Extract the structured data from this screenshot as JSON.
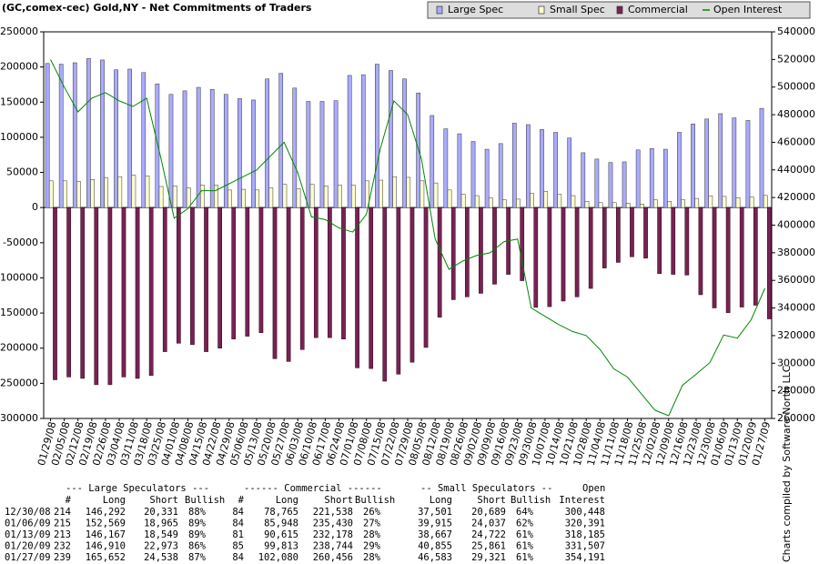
{
  "chart_data": {
    "type": "bar",
    "title": "(GC,comex-cec) Gold,NY - Net Commitments of Traders",
    "categories": [
      "01/29/08",
      "02/05/08",
      "02/12/08",
      "02/19/08",
      "02/26/08",
      "03/04/08",
      "03/11/08",
      "03/18/08",
      "03/25/08",
      "04/01/08",
      "04/08/08",
      "04/15/08",
      "04/22/08",
      "04/29/08",
      "05/06/08",
      "05/13/08",
      "05/20/08",
      "05/27/08",
      "06/03/08",
      "06/10/08",
      "06/17/08",
      "06/24/08",
      "07/01/08",
      "07/08/08",
      "07/15/08",
      "07/22/08",
      "07/29/08",
      "08/05/08",
      "08/12/08",
      "08/19/08",
      "08/26/08",
      "09/02/08",
      "09/09/08",
      "09/16/08",
      "09/23/08",
      "09/30/08",
      "10/07/08",
      "10/14/08",
      "10/21/08",
      "10/28/08",
      "11/04/08",
      "11/11/08",
      "11/18/08",
      "11/25/08",
      "12/02/08",
      "12/09/08",
      "12/16/08",
      "12/23/08",
      "12/30/08",
      "01/06/09",
      "01/13/09",
      "01/20/09",
      "01/27/09"
    ],
    "series": [
      {
        "name": "Large Spec",
        "type": "bar",
        "color": "#aaaaff",
        "values": [
          205000,
          204000,
          206000,
          212000,
          210000,
          196000,
          197000,
          192000,
          176000,
          161000,
          166000,
          171000,
          168000,
          161000,
          155000,
          153000,
          183000,
          191000,
          170000,
          151000,
          151000,
          152000,
          188000,
          189000,
          204000,
          195000,
          183000,
          163000,
          131000,
          112000,
          105000,
          94000,
          83000,
          91000,
          120000,
          118000,
          111000,
          107000,
          99000,
          78000,
          69000,
          64000,
          65000,
          82000,
          84000,
          83000,
          107000,
          119000,
          125961,
          133604,
          127618,
          123937,
          141114
        ]
      },
      {
        "name": "Small Spec",
        "type": "bar",
        "color": "#ffffcc",
        "values": [
          38000,
          38000,
          37000,
          40000,
          42000,
          44000,
          46000,
          45000,
          30000,
          31000,
          28000,
          32000,
          32000,
          25000,
          26000,
          25000,
          28000,
          33000,
          27000,
          33000,
          31000,
          32000,
          32000,
          38000,
          39000,
          44000,
          43000,
          38000,
          35000,
          25000,
          19000,
          17000,
          14000,
          11000,
          12000,
          20000,
          23000,
          19000,
          17000,
          9000,
          7000,
          7000,
          6000,
          5000,
          11000,
          9000,
          11000,
          13000,
          16812,
          15878,
          13945,
          14994,
          17262
        ]
      },
      {
        "name": "Commercial",
        "type": "bar",
        "color": "#772255",
        "values": [
          -245000,
          -241000,
          -243000,
          -252000,
          -252000,
          -241000,
          -243000,
          -239000,
          -205000,
          -193000,
          -195000,
          -205000,
          -200000,
          -187000,
          -183000,
          -178000,
          -215000,
          -219000,
          -202000,
          -185000,
          -185000,
          -187000,
          -228000,
          -229000,
          -247000,
          -237000,
          -220000,
          -199000,
          -156000,
          -131000,
          -127000,
          -122000,
          -109000,
          -95000,
          -104000,
          -142000,
          -141000,
          -133000,
          -127000,
          -115000,
          -86000,
          -78000,
          -70000,
          -72000,
          -94000,
          -95000,
          -96000,
          -124000,
          -142773,
          -149482,
          -141563,
          -138931,
          -158376
        ]
      },
      {
        "name": "Open Interest",
        "type": "line",
        "axis": "y2",
        "color": "#008800",
        "values": [
          520000,
          500000,
          482000,
          492000,
          496000,
          490000,
          486000,
          492000,
          450000,
          405000,
          412000,
          425000,
          425000,
          430000,
          435000,
          440000,
          450000,
          460000,
          438000,
          406000,
          404000,
          398000,
          395000,
          408000,
          455000,
          490000,
          480000,
          448000,
          390000,
          368000,
          374000,
          378000,
          380000,
          388000,
          390000,
          340000,
          334000,
          328000,
          323000,
          320000,
          310000,
          296000,
          290000,
          278000,
          266000,
          262000,
          284000,
          292000,
          300448,
          320391,
          318185,
          331507,
          354191
        ]
      }
    ],
    "ylim": [
      -300000,
      250000
    ],
    "yticks": [
      -300000,
      -250000,
      -200000,
      -150000,
      -100000,
      -50000,
      0,
      50000,
      100000,
      150000,
      200000,
      250000
    ],
    "y2lim": [
      260000,
      540000
    ],
    "y2ticks": [
      260000,
      280000,
      300000,
      320000,
      340000,
      360000,
      380000,
      400000,
      420000,
      440000,
      460000,
      480000,
      500000,
      520000,
      540000
    ],
    "legend": "top-right",
    "grid": false
  },
  "table": {
    "group_headers": [
      "--- Large Speculators ---",
      "------ Commercial ------",
      "-- Small Speculators --",
      "Open"
    ],
    "headers": [
      "#",
      "Long",
      "Short",
      "Bullish",
      "#",
      "Long",
      "Short",
      "Bullish",
      "Long",
      "Short",
      "Bullish",
      "Interest"
    ],
    "rows": [
      [
        "12/30/08",
        "214",
        "146,292",
        "20,331",
        "88%",
        "84",
        "78,765",
        "221,538",
        "26%",
        "37,501",
        "20,689",
        "64%",
        "300,448"
      ],
      [
        "01/06/09",
        "215",
        "152,569",
        "18,965",
        "89%",
        "84",
        "85,948",
        "235,430",
        "27%",
        "39,915",
        "24,037",
        "62%",
        "320,391"
      ],
      [
        "01/13/09",
        "213",
        "146,167",
        "18,549",
        "89%",
        "81",
        "90,615",
        "232,178",
        "28%",
        "38,667",
        "24,722",
        "61%",
        "318,185"
      ],
      [
        "01/20/09",
        "232",
        "146,910",
        "22,973",
        "86%",
        "85",
        "99,813",
        "238,744",
        "29%",
        "40,855",
        "25,861",
        "61%",
        "331,507"
      ],
      [
        "01/27/09",
        "239",
        "165,652",
        "24,538",
        "87%",
        "84",
        "102,080",
        "260,456",
        "28%",
        "46,583",
        "29,321",
        "61%",
        "354,191"
      ]
    ]
  },
  "credit": "Charts compiled by Software North LLC"
}
